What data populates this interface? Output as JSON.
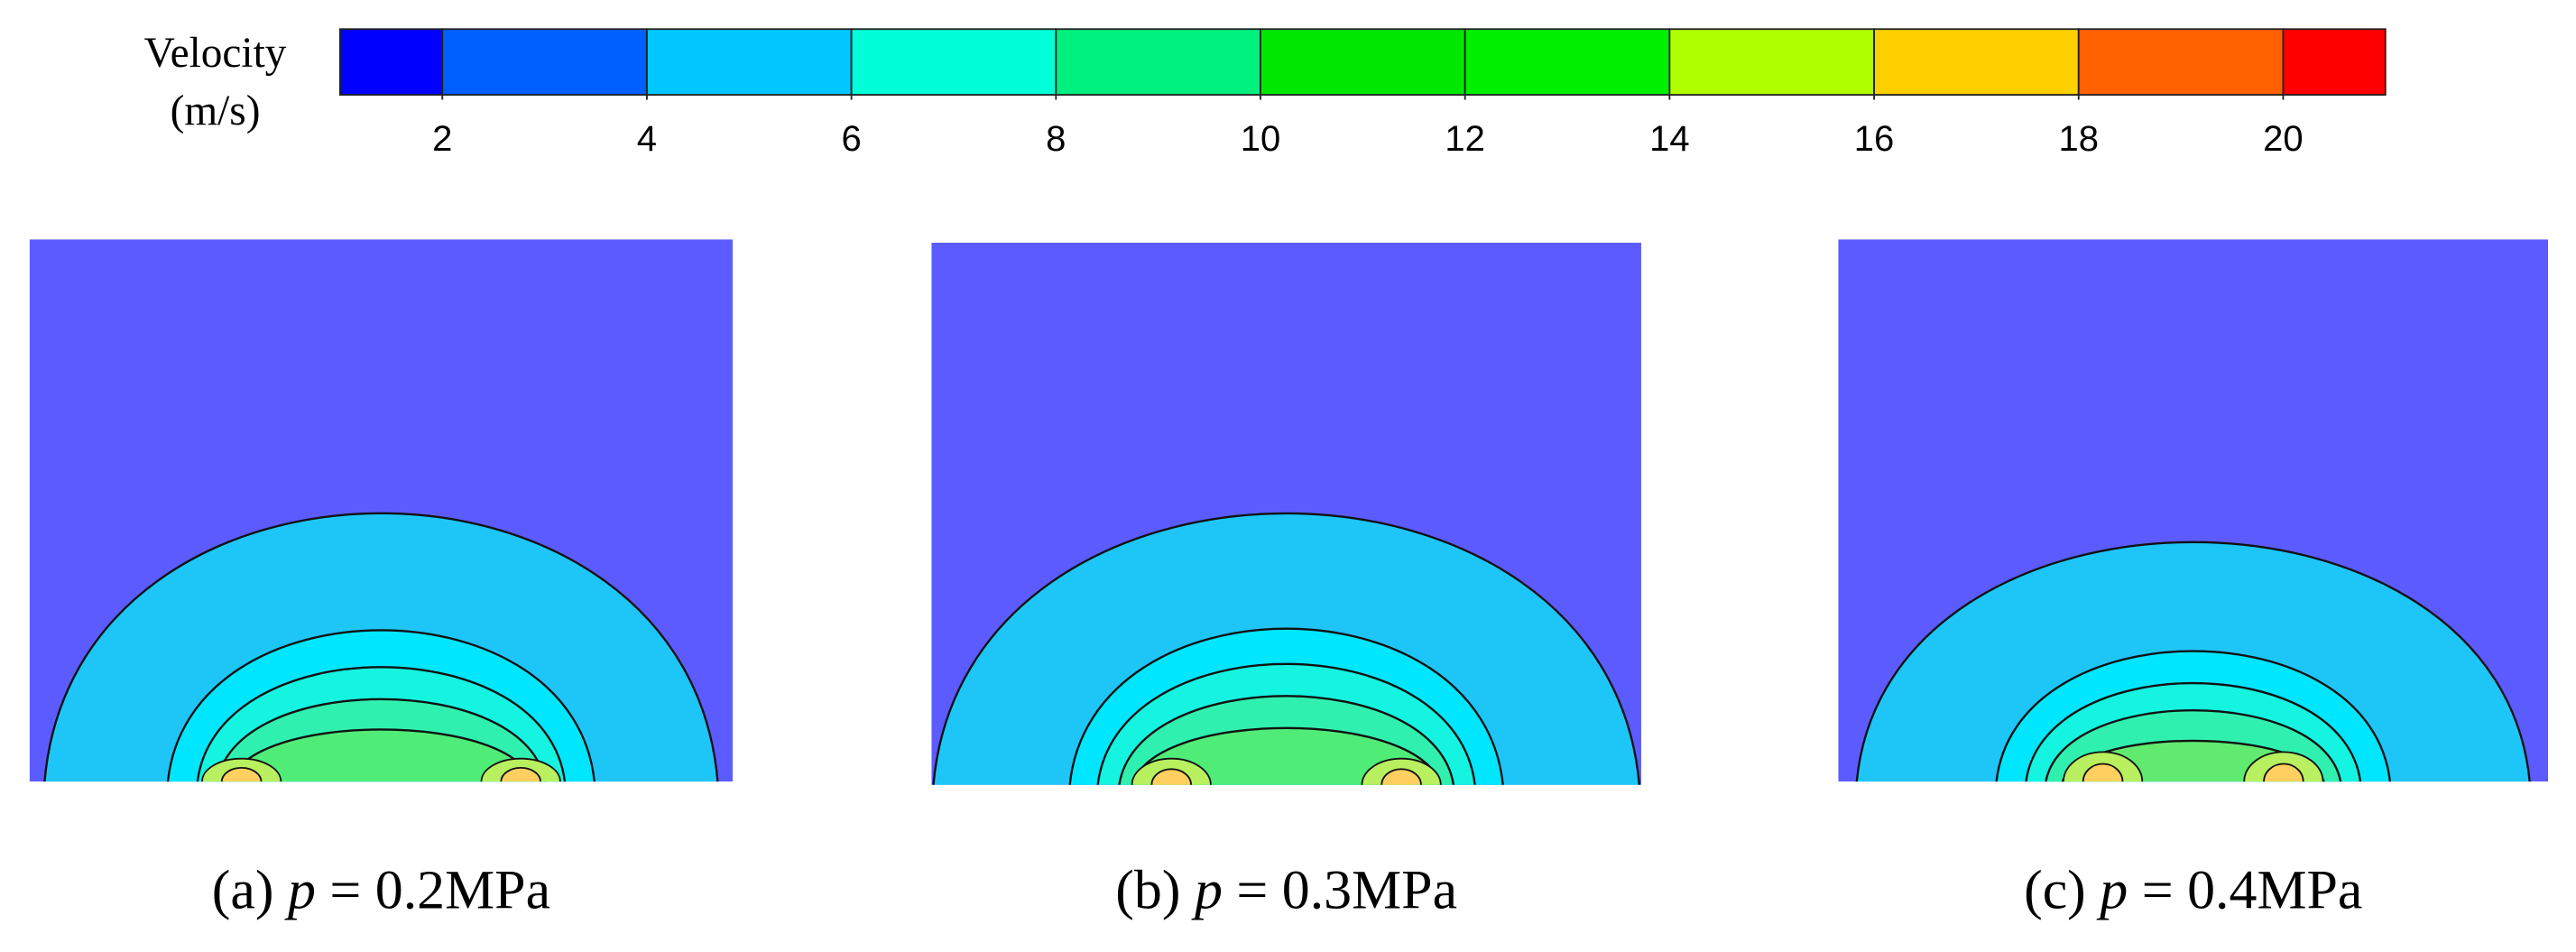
{
  "colorbar": {
    "label": [
      "Velocity",
      "(m/s)"
    ],
    "lim": [
      1,
      21
    ],
    "bounds": [
      1,
      2,
      4,
      6,
      8,
      10,
      12,
      14,
      16,
      18,
      20,
      21
    ],
    "colors": [
      "#0000ff",
      "#0060ff",
      "#00c8ff",
      "#00ffd8",
      "#00f080",
      "#00e800",
      "#00f000",
      "#b0ff00",
      "#ffd000",
      "#ff6000",
      "#ff0000"
    ],
    "ticks": [
      2,
      4,
      6,
      8,
      10,
      12,
      14,
      16,
      18,
      20
    ]
  },
  "panels": [
    {
      "label": "(a)",
      "var": "p",
      "value": "= 0.2MPa"
    },
    {
      "label": "(b)",
      "var": "p",
      "value": "= 0.3MPa"
    },
    {
      "label": "(c)",
      "var": "p",
      "value": "= 0.4MPa"
    }
  ]
}
